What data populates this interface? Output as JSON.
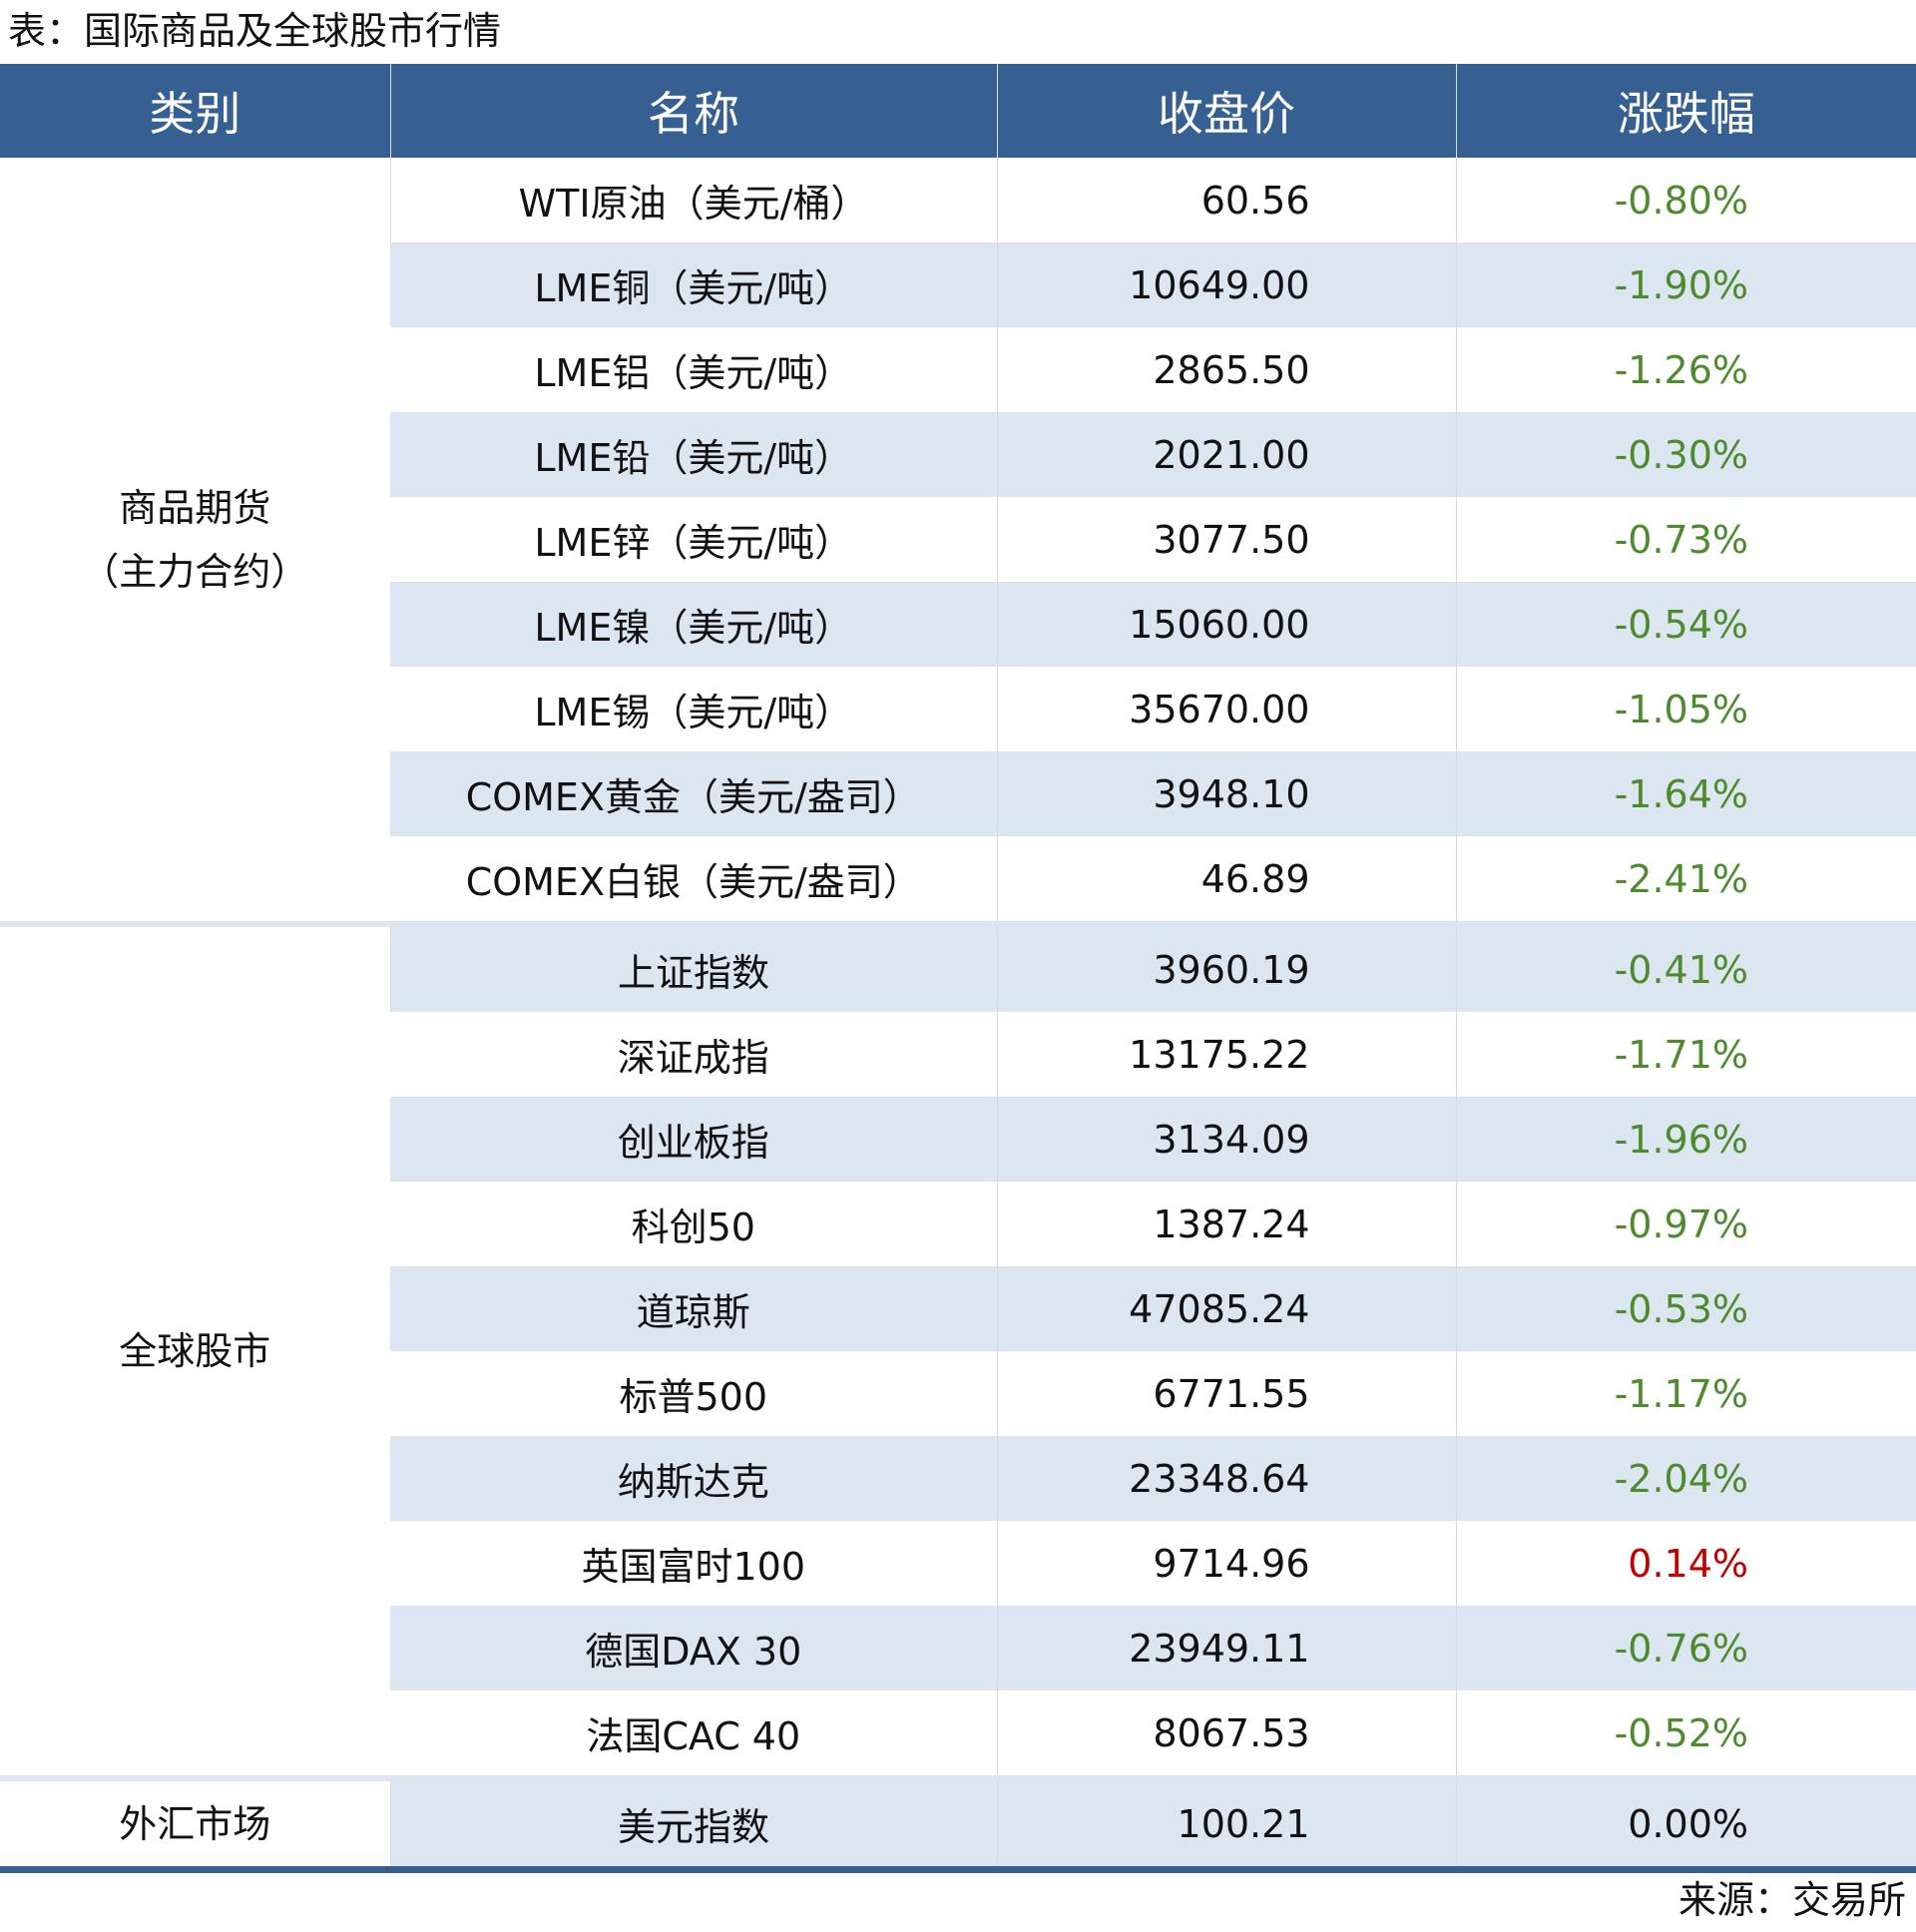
{
  "title": "表：国际商品及全球股市行情",
  "headers": [
    "类别",
    "名称",
    "收盘价",
    "涨跌幅"
  ],
  "colors": {
    "header_bg": "#366092",
    "stripe": "#dce6f1",
    "negative": "#4e8b2f",
    "positive": "#c00000"
  },
  "groups": [
    {
      "category": "商品期货",
      "category_sub": "（主力合约）",
      "rows": [
        {
          "name": "WTI原油（美元/桶）",
          "price": "60.56",
          "change": "-0.80%"
        },
        {
          "name": "LME铜（美元/吨）",
          "price": "10649.00",
          "change": "-1.90%"
        },
        {
          "name": "LME铝（美元/吨）",
          "price": "2865.50",
          "change": "-1.26%"
        },
        {
          "name": "LME铅（美元/吨）",
          "price": "2021.00",
          "change": "-0.30%"
        },
        {
          "name": "LME锌（美元/吨）",
          "price": "3077.50",
          "change": "-0.73%"
        },
        {
          "name": "LME镍（美元/吨）",
          "price": "15060.00",
          "change": "-0.54%"
        },
        {
          "name": "LME锡（美元/吨）",
          "price": "35670.00",
          "change": "-1.05%"
        },
        {
          "name": "COMEX黄金（美元/盎司）",
          "price": "3948.10",
          "change": "-1.64%"
        },
        {
          "name": "COMEX白银（美元/盎司）",
          "price": "46.89",
          "change": "-2.41%"
        }
      ]
    },
    {
      "category": "全球股市",
      "rows": [
        {
          "name": "上证指数",
          "price": "3960.19",
          "change": "-0.41%"
        },
        {
          "name": "深证成指",
          "price": "13175.22",
          "change": "-1.71%"
        },
        {
          "name": "创业板指",
          "price": "3134.09",
          "change": "-1.96%"
        },
        {
          "name": "科创50",
          "price": "1387.24",
          "change": "-0.97%"
        },
        {
          "name": "道琼斯",
          "price": "47085.24",
          "change": "-0.53%"
        },
        {
          "name": "标普500",
          "price": "6771.55",
          "change": "-1.17%"
        },
        {
          "name": "纳斯达克",
          "price": "23348.64",
          "change": "-2.04%"
        },
        {
          "name": "英国富时100",
          "price": "9714.96",
          "change": "0.14%"
        },
        {
          "name": "德国DAX 30",
          "price": "23949.11",
          "change": "-0.76%"
        },
        {
          "name": "法国CAC 40",
          "price": "8067.53",
          "change": "-0.52%"
        }
      ]
    },
    {
      "category": "外汇市场",
      "rows": [
        {
          "name": "美元指数",
          "price": "100.21",
          "change": "0.00%"
        }
      ]
    }
  ],
  "source": "来源：交易所"
}
